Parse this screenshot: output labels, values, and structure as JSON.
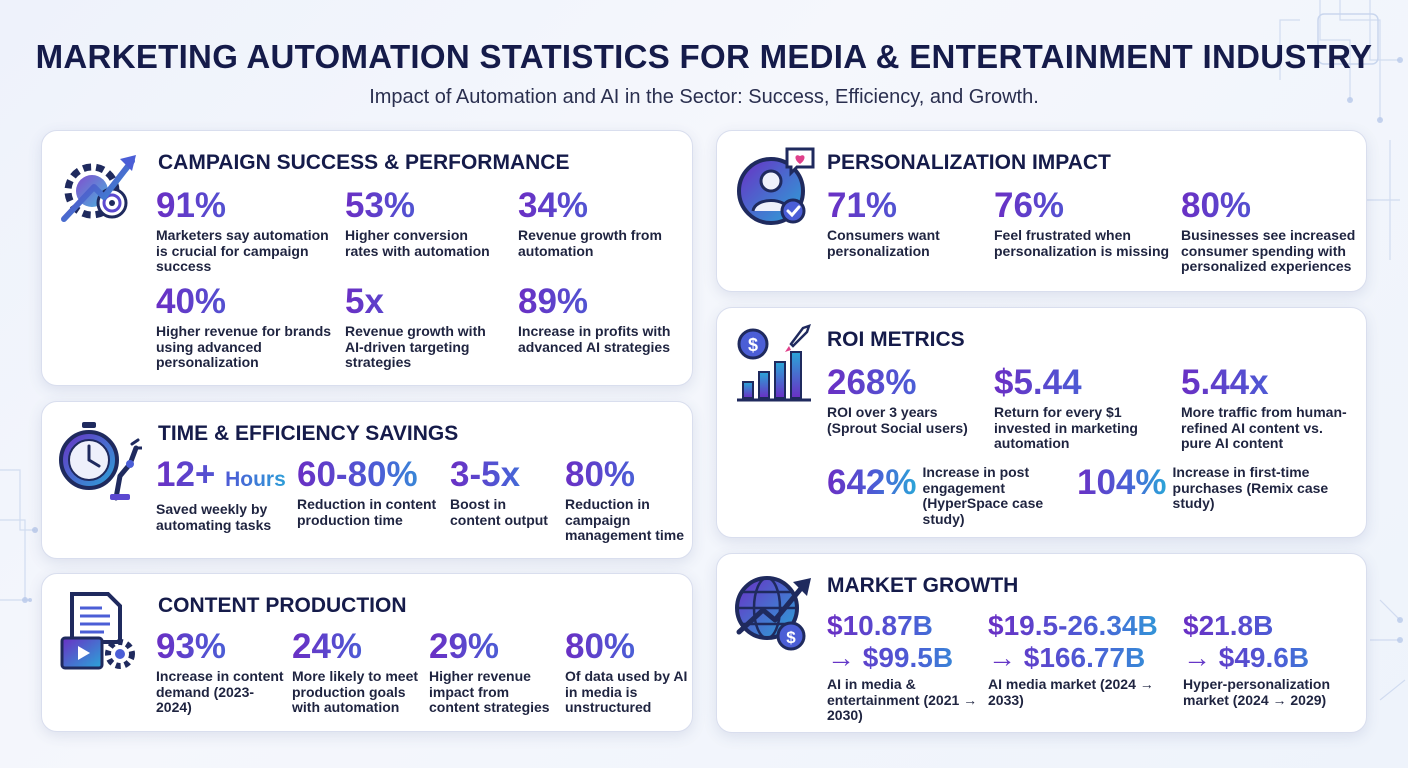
{
  "header": {
    "title": "MARKETING AUTOMATION STATISTICS FOR MEDIA & ENTERTAINMENT INDUSTRY",
    "subtitle": "Impact of Automation and AI in the Sector: Success, Efficiency, and Growth."
  },
  "campaign": {
    "heading": "CAMPAIGN SUCCESS & PERFORMANCE",
    "icon": "gear-target-arrow-icon",
    "stats": [
      {
        "value": "91%",
        "label": "Marketers say automation is crucial for campaign success"
      },
      {
        "value": "53%",
        "label": "Higher conversion rates with automation"
      },
      {
        "value": "34%",
        "label": "Revenue growth from automation"
      },
      {
        "value": "40%",
        "label": "Higher revenue for brands using advanced personalization"
      },
      {
        "value": "5x",
        "label": "Revenue growth with AI-driven targeting strategies"
      },
      {
        "value": "89%",
        "label": "Increase in profits with advanced AI strategies"
      }
    ]
  },
  "efficiency": {
    "heading": "TIME & EFFICIENCY SAVINGS",
    "icon": "stopwatch-robot-arm-icon",
    "stats": [
      {
        "value": "12+",
        "unit": "Hours",
        "label": "Saved weekly by automating tasks"
      },
      {
        "value": "60-80%",
        "label": "Reduction in content production time"
      },
      {
        "value": "3-5x",
        "label": "Boost in content output"
      },
      {
        "value": "80%",
        "label": "Reduction in campaign management time"
      }
    ]
  },
  "content": {
    "heading": "CONTENT PRODUCTION",
    "icon": "document-film-gear-icon",
    "stats": [
      {
        "value": "93%",
        "label": "Increase in content demand (2023-2024)"
      },
      {
        "value": "24%",
        "label": "More likely to meet production goals with automation"
      },
      {
        "value": "29%",
        "label": "Higher revenue impact from content strategies"
      },
      {
        "value": "80%",
        "label": "Of data used by AI in media is unstructured"
      }
    ]
  },
  "personalization": {
    "heading": "PERSONALIZATION IMPACT",
    "icon": "user-heart-check-icon",
    "stats": [
      {
        "value": "71%",
        "label": "Consumers want personalization"
      },
      {
        "value": "76%",
        "label": "Feel frustrated when personalization is missing"
      },
      {
        "value": "80%",
        "label": "Businesses see increased consumer spending with personalized experiences"
      }
    ]
  },
  "roi": {
    "heading": "ROI METRICS",
    "icon": "dollar-bar-chart-rocket-icon",
    "stats": [
      {
        "value": "268%",
        "label": "ROI over 3 years (Sprout Social users)"
      },
      {
        "value": "$5.44",
        "label": "Return for every $1 invested in marketing automation"
      },
      {
        "value": "5.44x",
        "label": "More traffic from human-refined AI content vs. pure AI content"
      },
      {
        "value": "642%",
        "label": "Increase in post engagement (HyperSpace case study)"
      },
      {
        "value": "104%",
        "label": "Increase in first-time purchases (Remix case study)"
      }
    ]
  },
  "market": {
    "heading": "MARKET GROWTH",
    "icon": "globe-growth-dollar-icon",
    "stats": [
      {
        "value": "$10.87B",
        "value2": "→ $99.5B",
        "label": "AI in media & entertainment (2021 → 2030)"
      },
      {
        "value": "$19.5-26.34B",
        "value2": "→ $166.77B",
        "label": "AI media market (2024 → 2033)"
      },
      {
        "value": "$21.8B",
        "value2": "→ $49.6B",
        "label": "Hyper-personalization market (2024 → 2029)"
      }
    ]
  }
}
